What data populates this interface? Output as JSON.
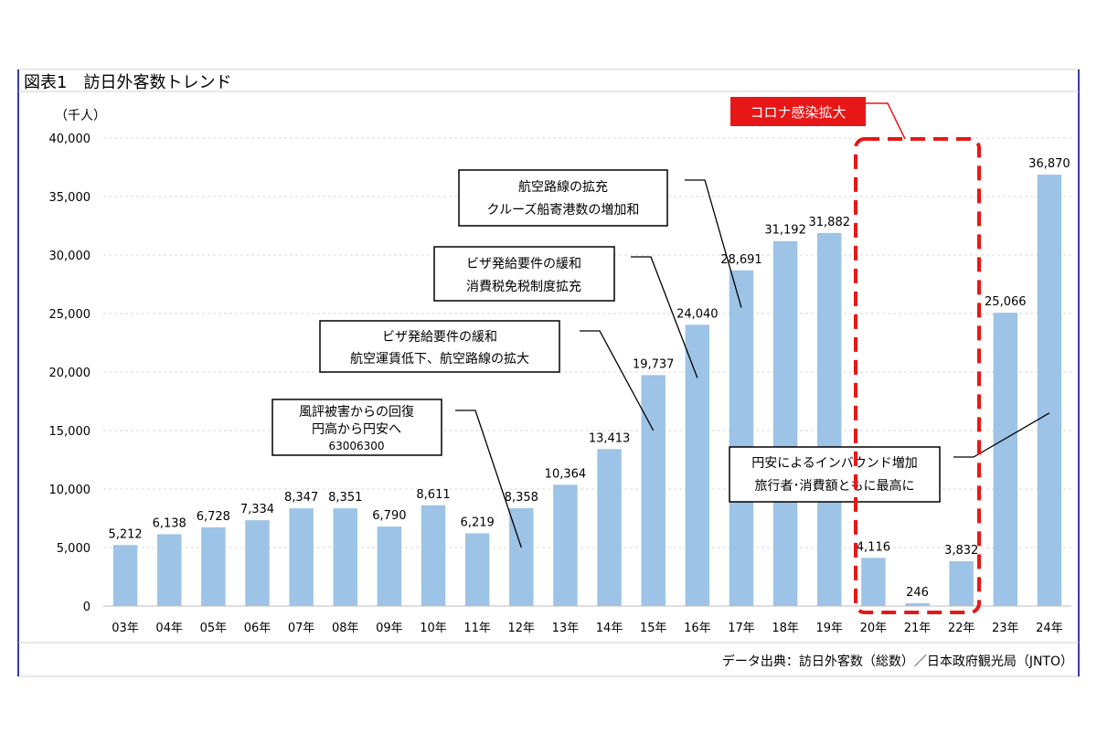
{
  "chart_data": {
    "type": "bar",
    "title": "図表1　訪日外客数トレンド",
    "ylabel": "（千人）",
    "categories": [
      "03年",
      "04年",
      "05年",
      "06年",
      "07年",
      "08年",
      "09年",
      "10年",
      "11年",
      "12年",
      "13年",
      "14年",
      "15年",
      "16年",
      "17年",
      "18年",
      "19年",
      "20年",
      "21年",
      "22年",
      "23年",
      "24年"
    ],
    "values": [
      5212,
      6138,
      6728,
      7334,
      8347,
      8351,
      6790,
      8611,
      6219,
      8358,
      10364,
      13413,
      19737,
      24040,
      28691,
      31192,
      31882,
      4116,
      246,
      3832,
      25066,
      36870
    ],
    "value_labels": [
      "5,212",
      "6,138",
      "6,728",
      "7,334",
      "8,347",
      "8,351",
      "6,790",
      "8,611",
      "6,219",
      "8,358",
      "10,364",
      "13,413",
      "19,737",
      "24,040",
      "28,691",
      "31,192",
      "31,882",
      "4,116",
      "246",
      "3,832",
      "25,066",
      "36,870"
    ],
    "ylim": [
      0,
      40000
    ],
    "yticks": [
      0,
      5000,
      10000,
      15000,
      20000,
      25000,
      30000,
      35000,
      40000
    ],
    "ytick_labels": [
      "0",
      "5,000",
      "10,000",
      "15,000",
      "20,000",
      "25,000",
      "30,000",
      "35,000",
      "40,000"
    ],
    "grid": true,
    "bar_color": "#9DC3E6",
    "source": "データ出典：訪日外客数（総数）／日本政府観光局（JNTO）",
    "highlight": {
      "label": "コロナ感染拡大",
      "start_category": "20年",
      "end_category": "22年",
      "color": "#E81717"
    },
    "annotations": [
      {
        "id": "recovery",
        "lines": [
          "風評被害からの回復",
          "円高から円安へ",
          "63006300"
        ],
        "target_category": "12年",
        "target_value": 5000
      },
      {
        "id": "visa-air",
        "lines": [
          "ビザ発給要件の緩和",
          "航空運賃低下、航空路線の拡大"
        ],
        "target_category": "15年",
        "target_value": 15000
      },
      {
        "id": "visa-tax",
        "lines": [
          "ビザ発給要件の緩和",
          "消費税免税制度拡充"
        ],
        "target_category": "16年",
        "target_value": 19500
      },
      {
        "id": "route-cruise",
        "lines": [
          "航空路線の拡充",
          "クルーズ船寄港数の増加和"
        ],
        "target_category": "17年",
        "target_value": 25500
      },
      {
        "id": "weak-yen",
        "lines": [
          "円安によるインバウンド増加",
          "旅行者･消費額ともに最高に"
        ],
        "target_category": "24年",
        "target_value": 16500
      }
    ]
  }
}
